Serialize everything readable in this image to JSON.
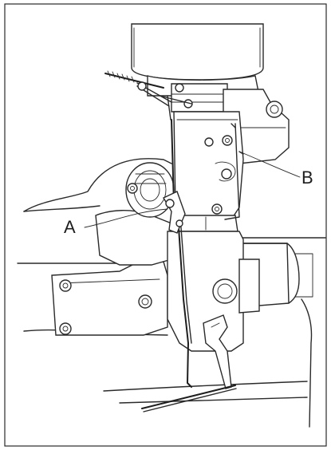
{
  "figure": {
    "callouts": [
      {
        "letter": "A"
      },
      {
        "letter": "B"
      }
    ]
  }
}
